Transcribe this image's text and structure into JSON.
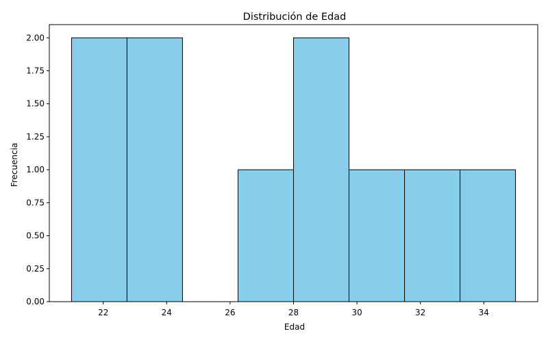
{
  "chart_data": {
    "type": "bar",
    "title": "Distribución de Edad",
    "xlabel": "Edad",
    "ylabel": "Frecuencia",
    "bin_edges": [
      21.0,
      22.75,
      24.5,
      26.25,
      28.0,
      29.75,
      31.5,
      33.25,
      35.0
    ],
    "values": [
      2,
      2,
      0,
      1,
      2,
      1,
      1,
      1
    ],
    "xlim": [
      20.3,
      35.7
    ],
    "ylim": [
      0,
      2.1
    ],
    "xticks": [
      22,
      24,
      26,
      28,
      30,
      32,
      34
    ],
    "yticks": [
      "0.00",
      "0.25",
      "0.50",
      "0.75",
      "1.00",
      "1.25",
      "1.50",
      "1.75",
      "2.00"
    ],
    "grid": false,
    "colors": {
      "bar_fill": "#87ceeb",
      "bar_edge": "#000000",
      "axis": "#000000"
    }
  }
}
